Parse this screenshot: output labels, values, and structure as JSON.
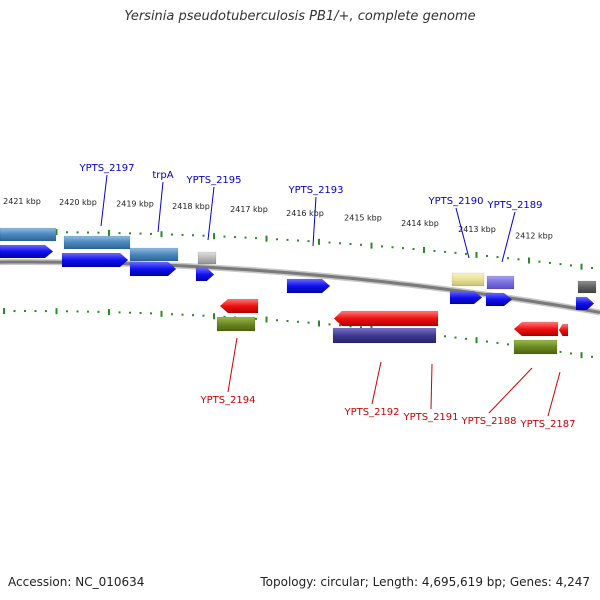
{
  "title": "Yersinia pseudotuberculosis PB1/+, complete genome",
  "footer": {
    "accession": "Accession: NC_010634",
    "topology": "Topology: circular; Length: 4,695,619 bp; Genes: 4,247"
  },
  "colors": {
    "plus_label": "#0000cc",
    "minus_label": "#cc0000",
    "tick": "#2a8a2a",
    "backbone": "#888888"
  },
  "ticks": [
    {
      "label": "2421 kbp"
    },
    {
      "label": "2420 kbp"
    },
    {
      "label": "2419 kbp"
    },
    {
      "label": "2418 kbp"
    },
    {
      "label": "2417 kbp"
    },
    {
      "label": "2416 kbp"
    },
    {
      "label": "2415 kbp"
    },
    {
      "label": "2414 kbp"
    },
    {
      "label": "2413 kbp"
    },
    {
      "label": "2412 kbp"
    }
  ],
  "genes": [
    {
      "label": "YPTS_2197",
      "strand": "+"
    },
    {
      "label": "trpA",
      "strand": "+"
    },
    {
      "label": "YPTS_2195",
      "strand": "+"
    },
    {
      "label": "YPTS_2193",
      "strand": "+"
    },
    {
      "label": "YPTS_2190",
      "strand": "+"
    },
    {
      "label": "YPTS_2189",
      "strand": "+"
    },
    {
      "label": "YPTS_2194",
      "strand": "-"
    },
    {
      "label": "YPTS_2192",
      "strand": "-"
    },
    {
      "label": "YPTS_2191",
      "strand": "-"
    },
    {
      "label": "YPTS_2188",
      "strand": "-"
    },
    {
      "label": "YPTS_2187",
      "strand": "-"
    }
  ]
}
